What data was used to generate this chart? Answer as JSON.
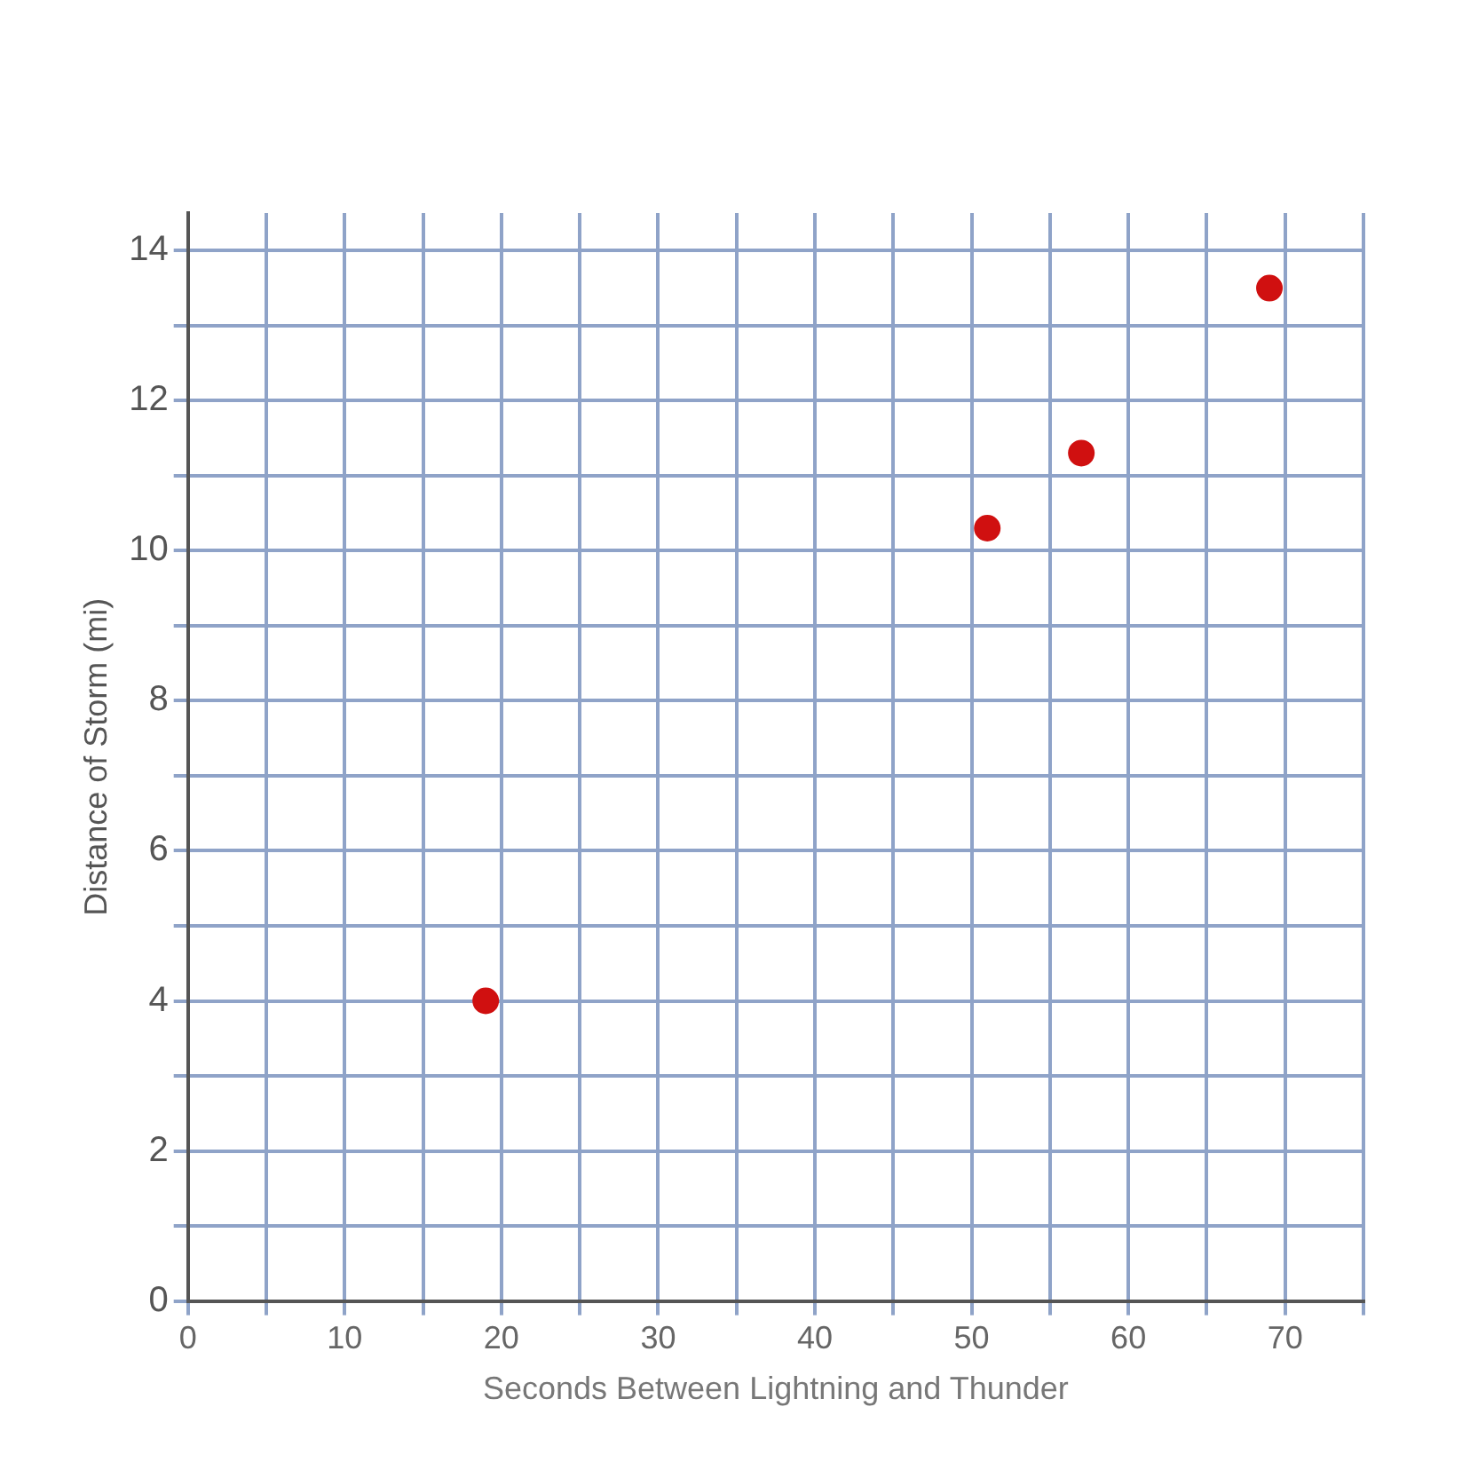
{
  "chart_data": {
    "type": "scatter",
    "xlabel": "Seconds Between Lightning and Thunder",
    "ylabel": "Distance of Storm (mi)",
    "x": [
      19,
      51,
      57,
      69
    ],
    "series": [
      {
        "color": "#d01010",
        "values": [
          4,
          10.3,
          11.3,
          13.5
        ]
      }
    ],
    "xlim": [
      0,
      75
    ],
    "xticks": [
      0,
      {
        "value": 5,
        "label": null
      },
      10,
      {
        "value": 15,
        "label": null
      },
      20,
      {
        "value": 25,
        "label": null
      },
      30,
      {
        "value": 35,
        "label": null
      },
      40,
      {
        "value": 45,
        "label": null
      },
      50,
      {
        "value": 55,
        "label": null
      },
      60,
      {
        "value": 65,
        "label": null
      },
      70,
      {
        "value": 75,
        "label": null
      }
    ],
    "ylim": [
      0,
      14.5
    ],
    "yticks": [
      0,
      {
        "value": 1,
        "label": null
      },
      2,
      {
        "value": 3,
        "label": null
      },
      4,
      {
        "value": 5,
        "label": null
      },
      6,
      {
        "value": 7,
        "label": null
      },
      8,
      {
        "value": 9,
        "label": null
      },
      10,
      {
        "value": 11,
        "label": null
      },
      12,
      {
        "value": 13,
        "label": null
      },
      14
    ],
    "grid": true,
    "legend": false,
    "marker": "circle"
  }
}
